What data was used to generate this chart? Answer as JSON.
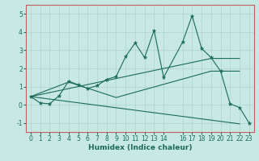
{
  "xlabel": "Humidex (Indice chaleur)",
  "bg_color": "#c8e8e4",
  "line_color": "#1a6b5a",
  "grid_color": "#aed4d0",
  "spine_color": "#c06060",
  "xlim": [
    -0.5,
    23.5
  ],
  "ylim": [
    -1.5,
    5.5
  ],
  "xticks": [
    0,
    1,
    2,
    3,
    4,
    5,
    6,
    7,
    8,
    9,
    10,
    11,
    12,
    13,
    14,
    16,
    17,
    18,
    19,
    20,
    21,
    22,
    23
  ],
  "yticks": [
    -1,
    0,
    1,
    2,
    3,
    4,
    5
  ],
  "line1_x": [
    0,
    1,
    2,
    3,
    4,
    5,
    6,
    7,
    8,
    9,
    10,
    11,
    12,
    13,
    14,
    16,
    17,
    18,
    19,
    20,
    21,
    22,
    23
  ],
  "line1_y": [
    0.45,
    0.1,
    0.05,
    0.5,
    1.3,
    1.1,
    0.9,
    1.05,
    1.4,
    1.55,
    2.65,
    3.4,
    2.6,
    4.1,
    1.5,
    3.45,
    4.9,
    3.1,
    2.6,
    1.85,
    0.05,
    -0.15,
    -1.0
  ],
  "line2_x": [
    0,
    4,
    9,
    19,
    22
  ],
  "line2_y": [
    0.45,
    1.25,
    0.4,
    1.85,
    1.85
  ],
  "line3_x": [
    0,
    19,
    22
  ],
  "line3_y": [
    0.45,
    2.55,
    2.55
  ],
  "line4_x": [
    0,
    22
  ],
  "line4_y": [
    0.45,
    -1.05
  ],
  "tick_fontsize": 5.5,
  "xlabel_fontsize": 6.5
}
